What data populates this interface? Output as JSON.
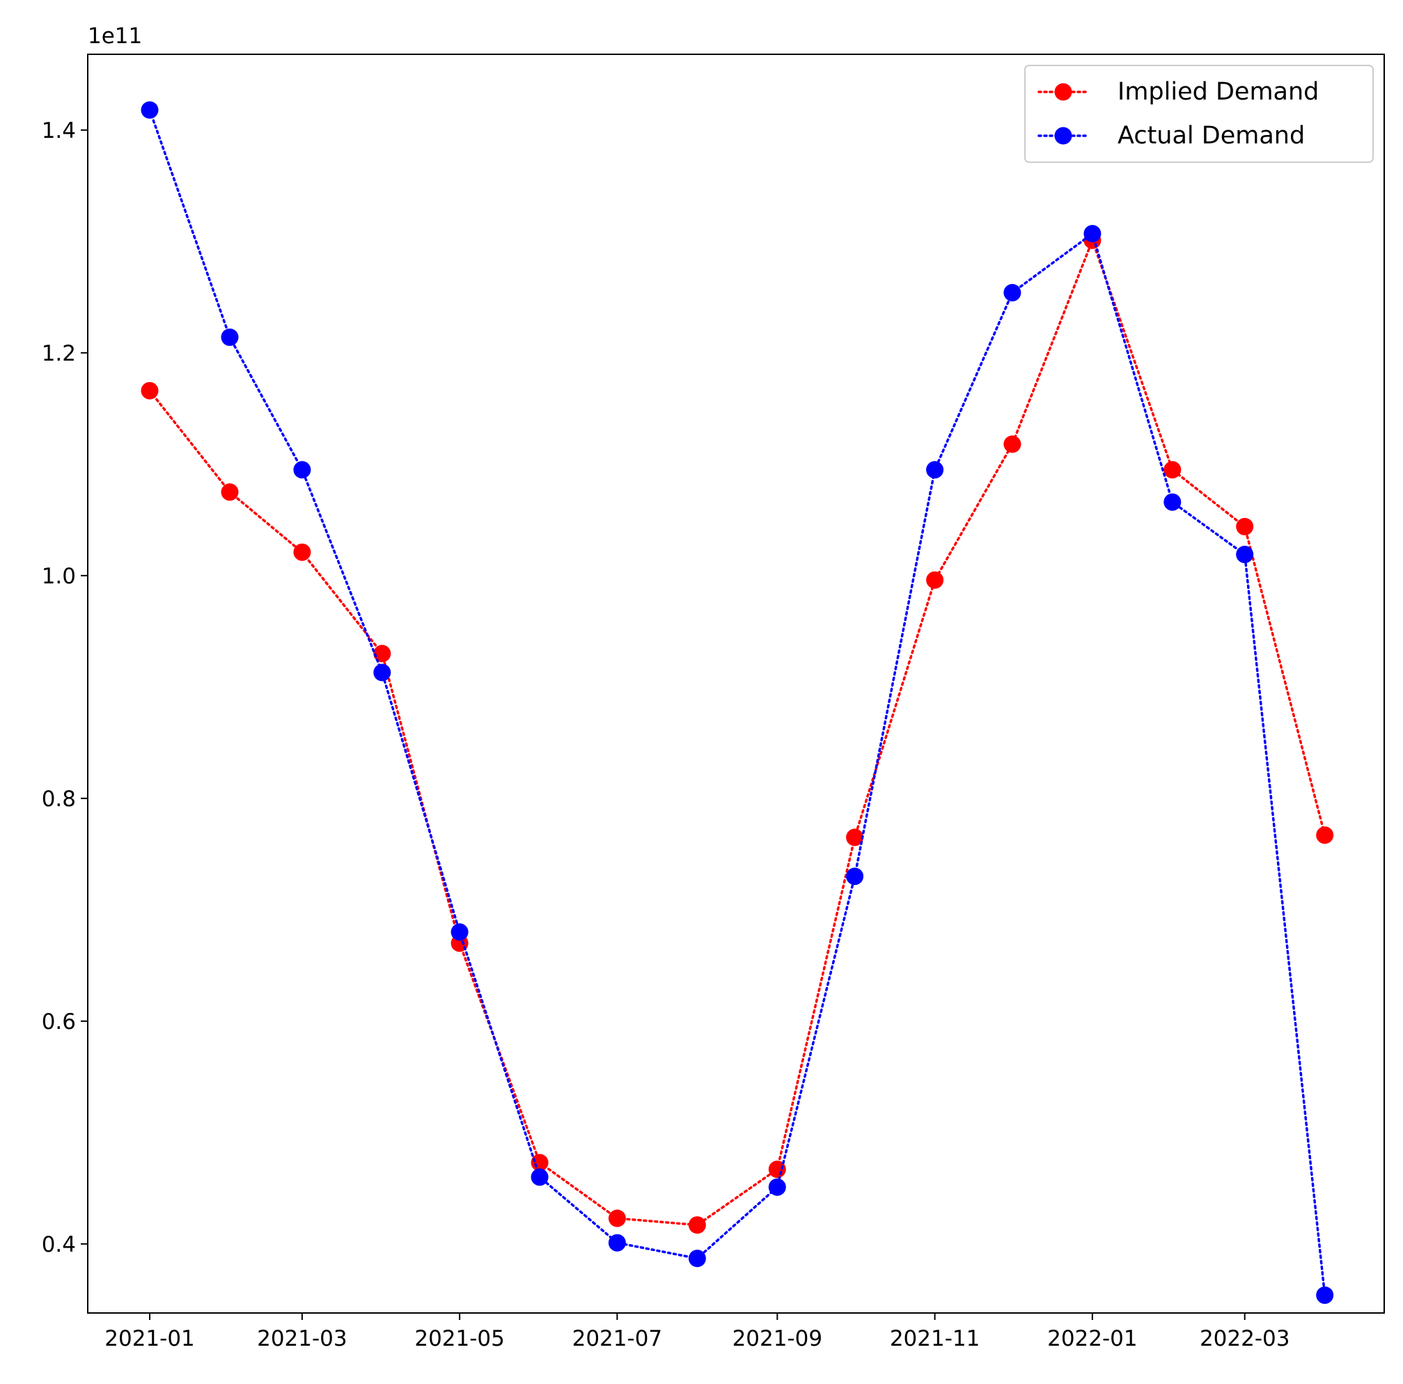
{
  "chart_data": {
    "type": "line",
    "title": "",
    "xlabel": "",
    "ylabel": "",
    "y_offset_label": "1e11",
    "y_scale": 100000000000,
    "x": [
      "2021-01",
      "2021-02",
      "2021-03",
      "2021-04",
      "2021-05",
      "2021-06",
      "2021-07",
      "2021-08",
      "2021-09",
      "2021-10",
      "2021-11",
      "2021-12",
      "2022-01",
      "2022-02",
      "2022-03",
      "2022-04"
    ],
    "x_ticks": [
      "2021-01",
      "2021-03",
      "2021-05",
      "2021-07",
      "2021-09",
      "2021-11",
      "2022-01",
      "2022-03"
    ],
    "y_ticks": [
      0.4,
      0.6,
      0.8,
      1.0,
      1.2,
      1.4
    ],
    "y_tick_labels": [
      "0.4",
      "0.6",
      "0.8",
      "1.0",
      "1.2",
      "1.4"
    ],
    "xlim": [
      "2020-12-08",
      "2022-04-24"
    ],
    "ylim": [
      0.338,
      1.468
    ],
    "grid": false,
    "legend_position": "top-right",
    "series": [
      {
        "name": "Implied Demand",
        "color": "#ff0000",
        "line_style": "dotted",
        "marker": "circle",
        "values": [
          1.166,
          1.075,
          1.021,
          0.93,
          0.67,
          0.473,
          0.423,
          0.417,
          0.467,
          0.765,
          0.996,
          1.118,
          1.301,
          1.095,
          1.044,
          0.767
        ]
      },
      {
        "name": "Actual Demand",
        "color": "#0000ff",
        "line_style": "dotted",
        "marker": "circle",
        "values": [
          1.418,
          1.214,
          1.095,
          0.913,
          0.68,
          0.46,
          0.401,
          0.387,
          0.451,
          0.73,
          1.095,
          1.254,
          1.307,
          1.066,
          1.019,
          0.354
        ]
      }
    ]
  }
}
